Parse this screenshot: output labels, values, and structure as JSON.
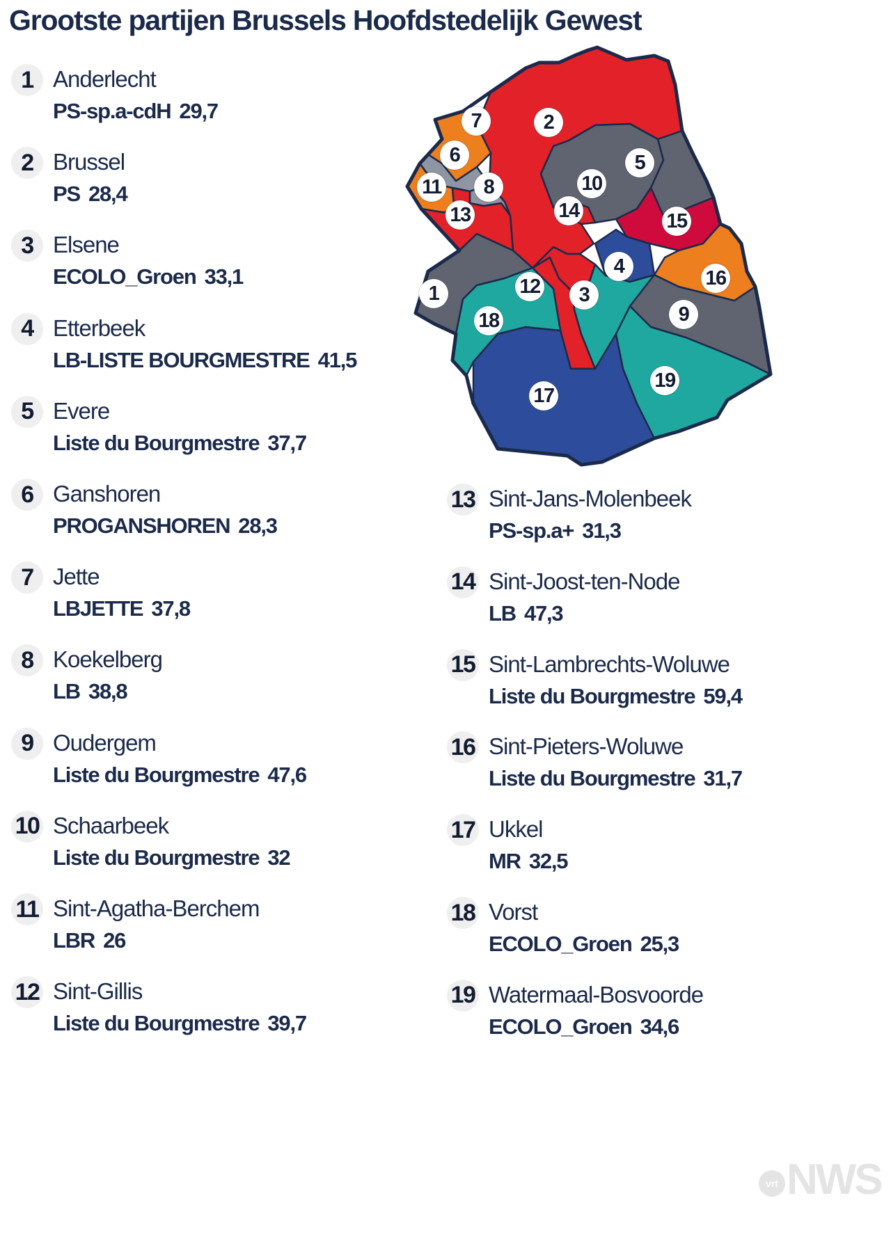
{
  "title": "Grootste partijen Brussels Hoofdstedelijk Gewest",
  "municipalities": [
    {
      "num": "1",
      "name": "Anderlecht",
      "party": "PS-sp.a-cdH",
      "percent": "29,7",
      "color": "#5f6470"
    },
    {
      "num": "2",
      "name": "Brussel",
      "party": "PS",
      "percent": "28,4",
      "color": "#e32129"
    },
    {
      "num": "3",
      "name": "Elsene",
      "party": "ECOLO_Groen",
      "percent": "33,1",
      "color": "#1fa8a0"
    },
    {
      "num": "4",
      "name": "Etterbeek",
      "party": "LB-LISTE BOURGMESTRE",
      "percent": "41,5",
      "color": "#2d4d9c"
    },
    {
      "num": "5",
      "name": "Evere",
      "party": "Liste du Bourgmestre",
      "percent": "37,7",
      "color": "#5f6470"
    },
    {
      "num": "6",
      "name": "Ganshoren",
      "party": "PROGANSHOREN",
      "percent": "28,3",
      "color": "#8e95a3"
    },
    {
      "num": "7",
      "name": "Jette",
      "party": "LBJETTE",
      "percent": "37,8",
      "color": "#ee7f1e"
    },
    {
      "num": "8",
      "name": "Koekelberg",
      "party": "LB",
      "percent": "38,8",
      "color": "#8e95a3"
    },
    {
      "num": "9",
      "name": "Oudergem",
      "party": "Liste du Bourgmestre",
      "percent": "47,6",
      "color": "#5f6470"
    },
    {
      "num": "10",
      "name": "Schaarbeek",
      "party": "Liste du Bourgmestre",
      "percent": "32",
      "color": "#5f6470"
    },
    {
      "num": "11",
      "name": "Sint-Agatha-Berchem",
      "party": "LBR",
      "percent": "26",
      "color": "#ee7f1e"
    },
    {
      "num": "12",
      "name": "Sint-Gillis",
      "party": "Liste du Bourgmestre",
      "percent": "39,7",
      "color": "#e32129"
    },
    {
      "num": "13",
      "name": "Sint-Jans-Molenbeek",
      "party": "PS-sp.a+",
      "percent": "31,3",
      "color": "#e32129"
    },
    {
      "num": "14",
      "name": "Sint-Joost-ten-Node",
      "party": "LB",
      "percent": "47,3",
      "color": "#e32129"
    },
    {
      "num": "15",
      "name": "Sint-Lambrechts-Woluwe",
      "party": "Liste du Bourgmestre",
      "percent": "59,4",
      "color": "#cf0b3d"
    },
    {
      "num": "16",
      "name": "Sint-Pieters-Woluwe",
      "party": "Liste du Bourgmestre",
      "percent": "31,7",
      "color": "#ee7f1e"
    },
    {
      "num": "17",
      "name": "Ukkel",
      "party": "MR",
      "percent": "32,5",
      "color": "#2d4d9c"
    },
    {
      "num": "18",
      "name": "Vorst",
      "party": "ECOLO_Groen",
      "percent": "25,3",
      "color": "#1fa8a0"
    },
    {
      "num": "19",
      "name": "Watermaal-Bosvoorde",
      "party": "ECOLO_Groen",
      "percent": "34,6",
      "color": "#1fa8a0"
    }
  ],
  "logo": {
    "badge": "vrt",
    "wordmark": "NWS"
  }
}
